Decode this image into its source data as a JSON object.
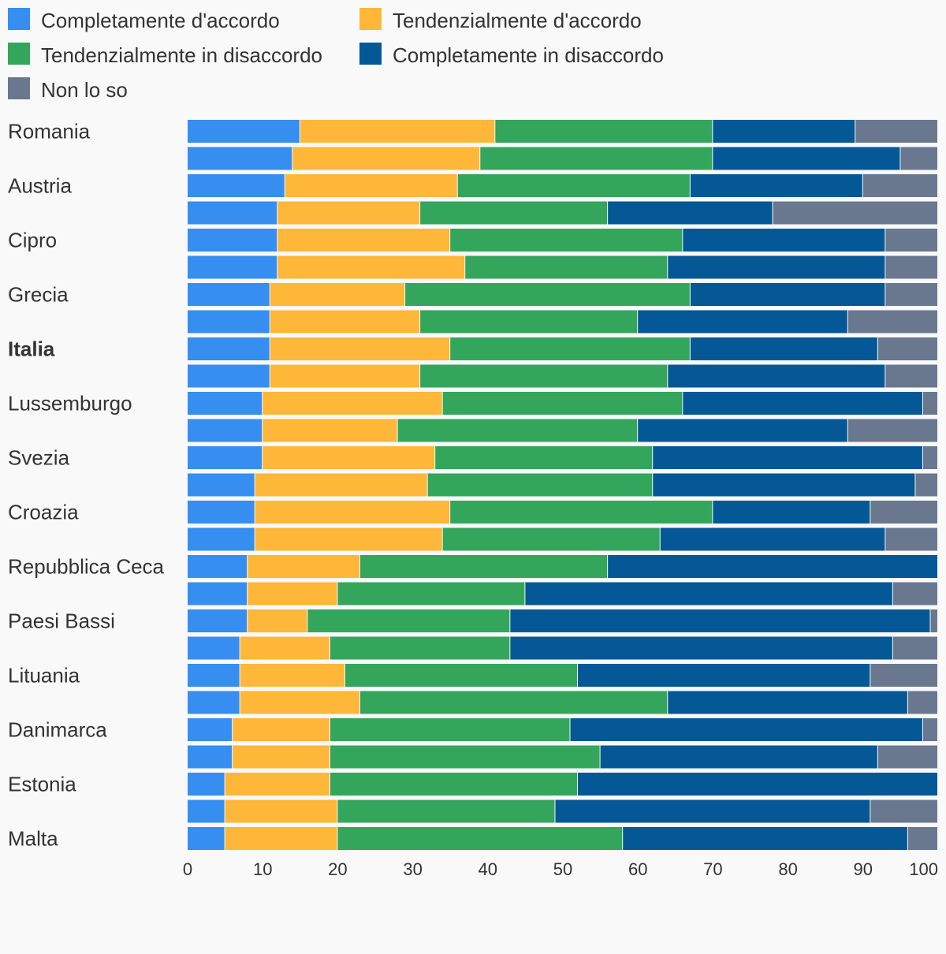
{
  "chart_data": {
    "type": "bar",
    "orientation": "horizontal",
    "stacked": true,
    "title": "",
    "xlabel": "",
    "ylabel": "",
    "xlim": [
      0,
      100
    ],
    "x_ticks": [
      0,
      10,
      20,
      30,
      40,
      50,
      60,
      70,
      80,
      90,
      100
    ],
    "grid": false,
    "legend_position": "top",
    "categories": [
      "Romania",
      "",
      "Austria",
      "",
      "Cipro",
      "",
      "Grecia",
      "",
      "Italia",
      "",
      "Lussemburgo",
      "",
      "Svezia",
      "",
      "Croazia",
      "",
      "Repubblica Ceca",
      "",
      "Paesi Bassi",
      "",
      "Lituania",
      "",
      "Danimarca",
      "",
      "Estonia",
      "",
      "Malta"
    ],
    "highlighted_category": "Italia",
    "series": [
      {
        "name": "Completamente d'accordo",
        "color": "#368ef0",
        "values": [
          15,
          14,
          13,
          12,
          12,
          12,
          11,
          11,
          11,
          11,
          10,
          10,
          10,
          9,
          9,
          9,
          8,
          8,
          8,
          7,
          7,
          7,
          6,
          6,
          5,
          5,
          5
        ]
      },
      {
        "name": "Tendenzialmente d'accordo",
        "color": "#ffb739",
        "values": [
          26,
          25,
          23,
          19,
          23,
          25,
          18,
          20,
          24,
          20,
          24,
          18,
          23,
          23,
          26,
          25,
          15,
          12,
          8,
          12,
          14,
          16,
          13,
          13,
          14,
          15,
          15
        ]
      },
      {
        "name": "Tendenzialmente in disaccordo",
        "color": "#33a65c",
        "values": [
          29,
          31,
          31,
          25,
          31,
          27,
          38,
          29,
          32,
          33,
          32,
          32,
          29,
          30,
          35,
          29,
          33,
          25,
          27,
          24,
          31,
          41,
          32,
          36,
          33,
          29,
          38
        ]
      },
      {
        "name": "Completamente in disaccordo",
        "color": "#045896",
        "values": [
          19,
          25,
          23,
          22,
          27,
          29,
          26,
          28,
          25,
          29,
          32,
          28,
          36,
          35,
          21,
          30,
          44,
          49,
          56,
          51,
          39,
          32,
          47,
          37,
          48,
          42,
          38
        ]
      },
      {
        "name": "Non lo so",
        "color": "#6a788f",
        "values": [
          11,
          5,
          10,
          22,
          7,
          7,
          7,
          12,
          8,
          7,
          2,
          12,
          2,
          3,
          9,
          7,
          0,
          6,
          1,
          6,
          9,
          4,
          2,
          8,
          0,
          9,
          4
        ]
      }
    ]
  }
}
